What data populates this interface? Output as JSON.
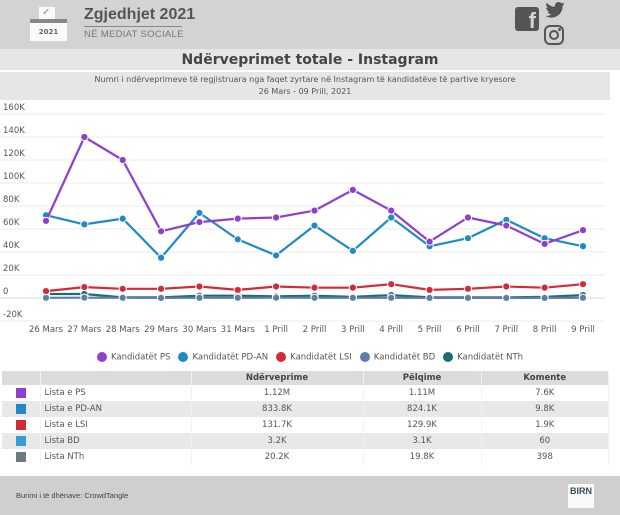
{
  "header": {
    "brand_title": "Zgjedhjet 2021",
    "brand_subtitle": "NË MEDIAT SOCIALE",
    "logo_year": "2021",
    "logo_icon": "ballot-box-check-icon",
    "social_icons": [
      "facebook-icon",
      "twitter-icon",
      "instagram-icon"
    ]
  },
  "chart_title": "Ndërveprimet totale - Instagram",
  "chart_subtitle_line1": "Numri i ndërveprimeve të regjistruara nga faqet zyrtare në Instagram të kandidatëve të partive kryesore",
  "chart_subtitle_line2": "26 Mars - 09 Prill, 2021",
  "chart_data": {
    "type": "line",
    "title": "Ndërveprimet totale - Instagram",
    "subtitle": "Numri i ndërveprimeve të regjistruara nga faqet zyrtare në Instagram të kandidatëve të partive kryesore — 26 Mars - 09 Prill, 2021",
    "xlabel": "",
    "ylabel": "",
    "ylim": [
      -20000,
      160000
    ],
    "yticks": [
      160000,
      140000,
      120000,
      100000,
      80000,
      60000,
      40000,
      20000,
      0,
      -20000
    ],
    "ytick_labels": [
      "160K",
      "140K",
      "120K",
      "100K",
      "80K",
      "60K",
      "40K",
      "20K",
      "0",
      "-20K"
    ],
    "grid": true,
    "legend_position": "bottom",
    "categories": [
      "26 Mars",
      "27 Mars",
      "28 Mars",
      "29 Mars",
      "30 Mars",
      "31 Mars",
      "1 Prill",
      "2 Prill",
      "3 Prill",
      "4 Prill",
      "5 Prill",
      "6 Prill",
      "7 Prill",
      "8 Prill",
      "9 Prill"
    ],
    "series": [
      {
        "name": "Kandidatët PS",
        "color": "#8e3fcf",
        "values": [
          67000,
          140000,
          120000,
          58000,
          66000,
          69000,
          70000,
          76000,
          94000,
          76000,
          49000,
          70000,
          63000,
          47000,
          59000
        ]
      },
      {
        "name": "Kandidatët PD-AN",
        "color": "#1f8ac6",
        "values": [
          72000,
          64000,
          69000,
          35000,
          74000,
          51000,
          37000,
          63000,
          41000,
          70000,
          45000,
          52000,
          68000,
          52000,
          45000
        ]
      },
      {
        "name": "Kandidatët LSI",
        "color": "#d42a38",
        "values": [
          6000,
          9500,
          8000,
          8000,
          10000,
          7000,
          10000,
          9000,
          9000,
          12000,
          7000,
          8000,
          10000,
          9000,
          12000
        ]
      },
      {
        "name": "Kandidatët BD",
        "color": "#5b7fa8",
        "values": [
          200,
          300,
          200,
          100,
          200,
          200,
          300,
          200,
          200,
          200,
          100,
          100,
          100,
          100,
          200
        ]
      },
      {
        "name": "Kandidatët NTh",
        "color": "#1f6970",
        "values": [
          3500,
          3500,
          500,
          500,
          2000,
          2000,
          1500,
          2000,
          1000,
          2500,
          500,
          500,
          500,
          1000,
          2500
        ]
      }
    ]
  },
  "table": {
    "headers": [
      "",
      "",
      "Ndërveprime",
      "Pëlqime",
      "Komente"
    ],
    "rows": [
      {
        "icon": "ps-logo-icon",
        "icon_color": "#8e3fcf",
        "name": "Lista e PS",
        "interactions": "1.12M",
        "likes": "1.11M",
        "comments": "7.6K"
      },
      {
        "icon": "pd-logo-icon",
        "icon_color": "#1f8ac6",
        "name": "Lista e PD-AN",
        "interactions": "833.8K",
        "likes": "824.1K",
        "comments": "9.8K"
      },
      {
        "icon": "lsi-logo-icon",
        "icon_color": "#d42a38",
        "name": "Lista e LSI",
        "interactions": "131.7K",
        "likes": "129.9K",
        "comments": "1.9K"
      },
      {
        "icon": "bd-logo-icon",
        "icon_color": "#3a9ad8",
        "name": "Lista BD",
        "interactions": "3.2K",
        "likes": "3.1K",
        "comments": "60"
      },
      {
        "icon": "nth-logo-icon",
        "icon_color": "#6d7a80",
        "name": "Lista NTh",
        "interactions": "20.2K",
        "likes": "19.8K",
        "comments": "398"
      }
    ]
  },
  "footer": {
    "source": "Burimi i të dhënave: CrowdTangle",
    "logo_text": "BIRN"
  }
}
